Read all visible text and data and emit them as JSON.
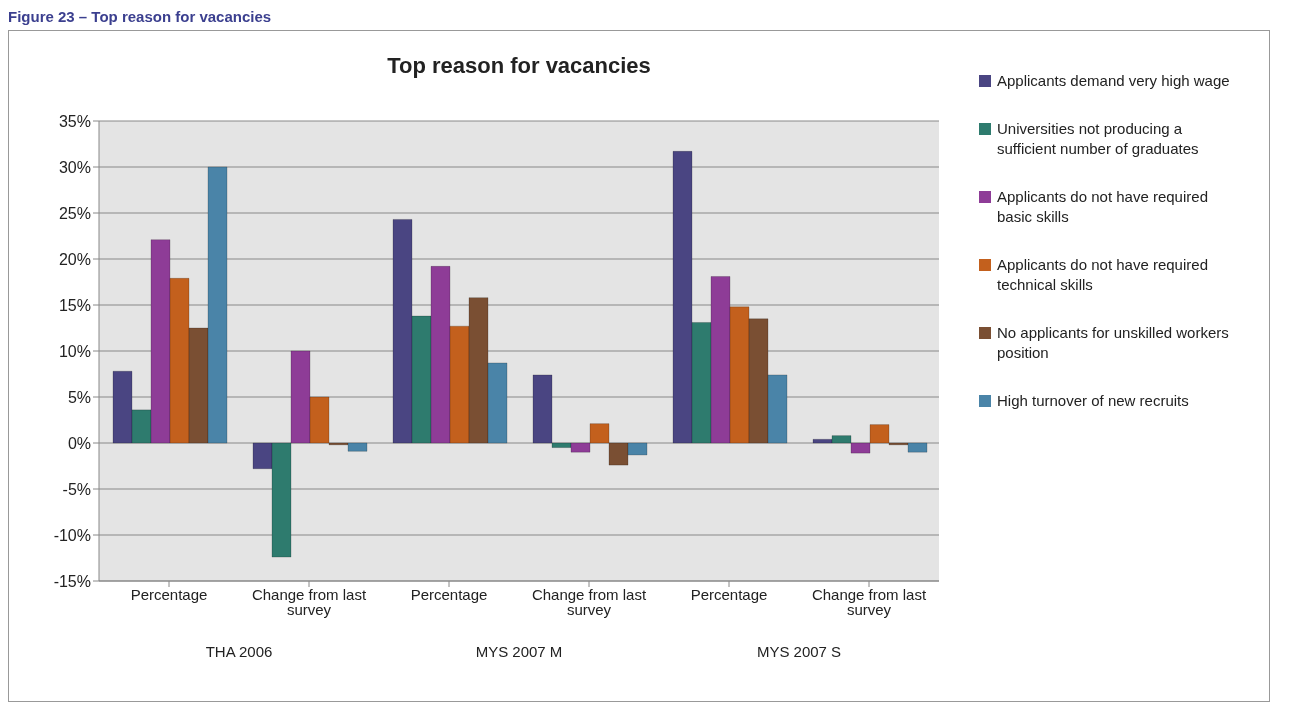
{
  "chart_data": {
    "type": "bar",
    "title": "Top reason for vacancies",
    "categories": [
      "Percentage",
      "Change from last survey",
      "Percentage",
      "Change from last survey",
      "Percentage",
      "Change from last survey"
    ],
    "series": [
      {
        "name": "Applicants  demand very high wage",
        "color": "#4a4582",
        "values": [
          7.8,
          -2.8,
          24.3,
          7.4,
          31.7,
          0.4
        ]
      },
      {
        "name": "Universities not producing a sufficient number of  graduates",
        "color": "#2e7b6e",
        "values": [
          3.6,
          -12.4,
          13.8,
          -0.5,
          13.1,
          0.8
        ]
      },
      {
        "name": "Applicants do not have required basic skills",
        "color": "#8e3c97",
        "values": [
          22.1,
          10.0,
          19.2,
          -1.0,
          18.1,
          -1.1
        ]
      },
      {
        "name": "Applicants do not have required technical skills",
        "color": "#c3601d",
        "values": [
          17.9,
          5.0,
          12.7,
          2.1,
          14.8,
          2.0
        ]
      },
      {
        "name": "No applicants for unskilled workers position",
        "color": "#7a4f33",
        "values": [
          12.5,
          -0.2,
          15.8,
          -2.4,
          13.5,
          -0.2
        ]
      },
      {
        "name": "High turnover of new recruits",
        "color": "#4a84a8",
        "values": [
          30.0,
          -0.9,
          8.7,
          -1.3,
          7.4,
          -1.0
        ]
      }
    ],
    "ylim": [
      -15,
      35
    ],
    "yticks": [
      {
        "value": -15,
        "label": "-15%"
      },
      {
        "value": -10,
        "label": "-10%"
      },
      {
        "value": -5,
        "label": "-5%"
      },
      {
        "value": 0,
        "label": "0%"
      },
      {
        "value": 5,
        "label": "5%"
      },
      {
        "value": 10,
        "label": "10%"
      },
      {
        "value": 15,
        "label": "15%"
      },
      {
        "value": 20,
        "label": "20%"
      },
      {
        "value": 25,
        "label": "25%"
      },
      {
        "value": 30,
        "label": "30%"
      },
      {
        "value": 35,
        "label": "35%"
      }
    ],
    "grid": "y",
    "legend": "right",
    "annotations": [
      "Figure 23 – Top reason for vacancies",
      "THA 2006",
      "MYS 2007 M",
      "MYS 2007 S"
    ]
  }
}
